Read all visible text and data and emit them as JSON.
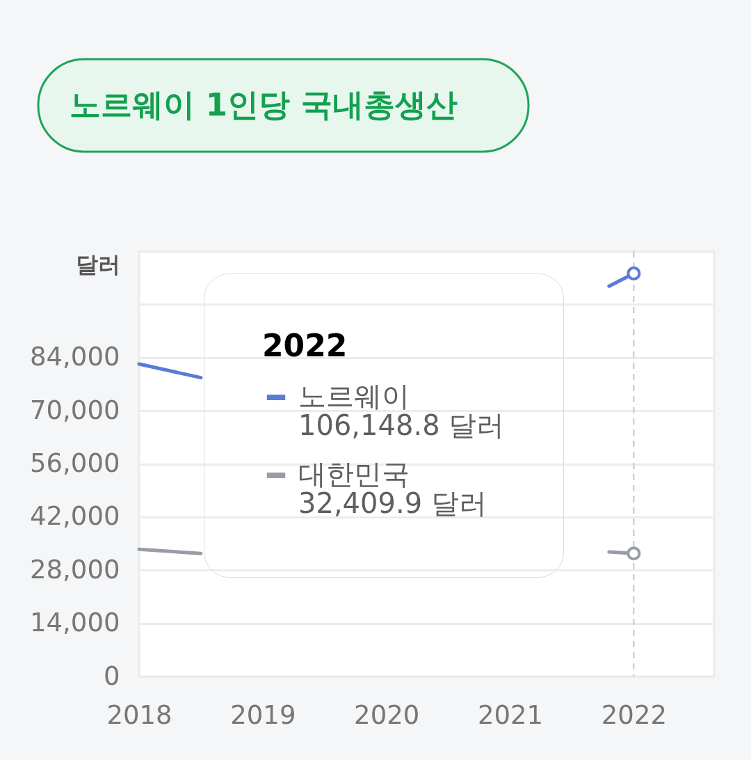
{
  "chart_data": {
    "type": "line",
    "title": "노르웨이 1인당 국내총생산",
    "ylabel": "달러",
    "legend_title": "2022",
    "xlim": [
      2018,
      2022.65
    ],
    "xticks": [
      2018,
      2019,
      2020,
      2021,
      2022
    ],
    "ylim": [
      0,
      112000
    ],
    "yticks": [
      0,
      {
        "value": 14000,
        "label": "14,000"
      },
      {
        "value": 28000,
        "label": "28,000"
      },
      {
        "value": 42000,
        "label": "42,000"
      },
      {
        "value": 56000,
        "label": "56,000"
      },
      {
        "value": 70000,
        "label": "70,000"
      },
      {
        "value": 84000,
        "label": "84,000"
      },
      {
        "value": 98000,
        "label": null
      },
      {
        "value": 112000,
        "label": null
      }
    ],
    "grid": "y",
    "legend": "top",
    "line_style": "solid",
    "series": [
      {
        "name": "노르웨이",
        "color": "#5a7bd6",
        "x": [
          2018,
          2018.5,
          2019,
          2020,
          2021,
          2021.8,
          2022
        ],
        "values": [
          82300,
          78700,
          null,
          null,
          null,
          102800,
          106148.8
        ]
      },
      {
        "name": "대한민국",
        "color": "#989ca6",
        "x": [
          2018,
          2018.5,
          2019,
          2020,
          2021,
          2021.8,
          2022
        ],
        "values": [
          33500,
          32400,
          null,
          null,
          null,
          32800,
          32409.9
        ]
      },
      {
        "type": "scatter",
        "color": "#5a7bd6",
        "marker": "circle",
        "x": [
          2022
        ],
        "values": [
          106148.8
        ]
      },
      {
        "type": "scatter",
        "color": "#989ca6",
        "marker": "circle",
        "x": [
          2022
        ],
        "values": [
          32409.9
        ]
      }
    ],
    "ref_lines": [
      {
        "axis": "x",
        "value": 2022,
        "color": "#c4c4c4",
        "line_style": "dashed"
      }
    ],
    "annotations": [
      "106,148.8 달러",
      "32,409.9 달러"
    ]
  }
}
